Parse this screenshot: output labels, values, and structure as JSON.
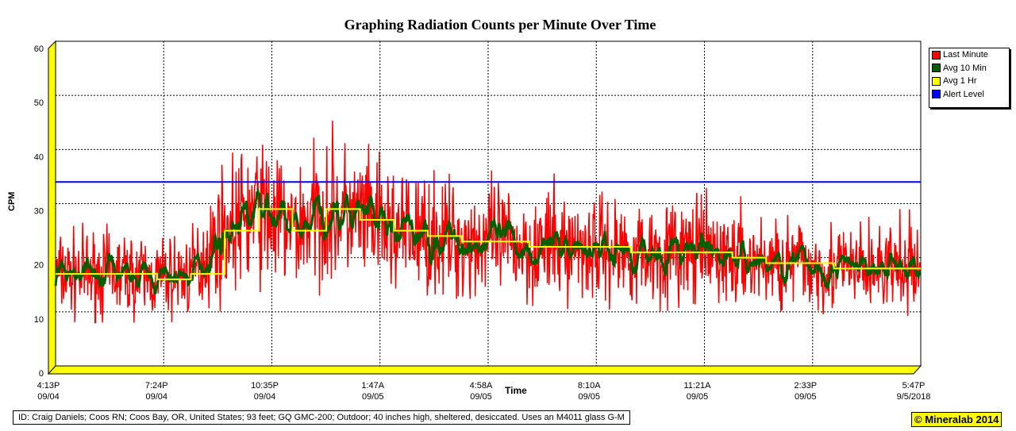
{
  "chart_data": {
    "type": "line",
    "title": "Graphing Radiation Counts per Minute Over Time",
    "xlabel": "Time",
    "ylabel": "CPM",
    "ylim": [
      0,
      60
    ],
    "yticks": [
      "0",
      "10",
      "20",
      "30",
      "40",
      "50",
      "60"
    ],
    "xticks": [
      {
        "time": "4:13P",
        "date": "09/04"
      },
      {
        "time": "7:24P",
        "date": "09/04"
      },
      {
        "time": "10:35P",
        "date": "09/04"
      },
      {
        "time": "1:47A",
        "date": "09/05"
      },
      {
        "time": "4:58A",
        "date": "09/05"
      },
      {
        "time": "8:10A",
        "date": "09/05"
      },
      {
        "time": "11:21A",
        "date": "09/05"
      },
      {
        "time": "2:33P",
        "date": "09/05"
      },
      {
        "time": "5:47P",
        "date": "9/5/2018"
      }
    ],
    "grid": true,
    "legend_position": "right",
    "series": [
      {
        "name": "Last Minute",
        "color": "#ff0000"
      },
      {
        "name": "Avg 10 Min",
        "color": "#006000"
      },
      {
        "name": "Avg 1 Hr",
        "color": "#ffff00",
        "hourly_values": [
          17,
          17,
          17,
          16,
          17,
          25,
          29,
          25,
          29,
          27,
          25,
          24,
          23,
          23,
          22,
          22,
          22,
          21,
          21,
          21,
          20,
          19,
          19,
          18,
          18,
          18
        ]
      },
      {
        "name": "Alert Level",
        "color": "#0000ff",
        "value": 34
      }
    ],
    "duration_hours": 25.57
  },
  "footer": {
    "id": "ID: Craig Daniels; Coos RN; Coos Bay, OR, United States; 93 feet; GQ GMC-200; Outdoor; 40 inches high, sheltered, desiccated. Uses an M4011 glass G-M",
    "copyright": "© Mineralab 2014"
  }
}
